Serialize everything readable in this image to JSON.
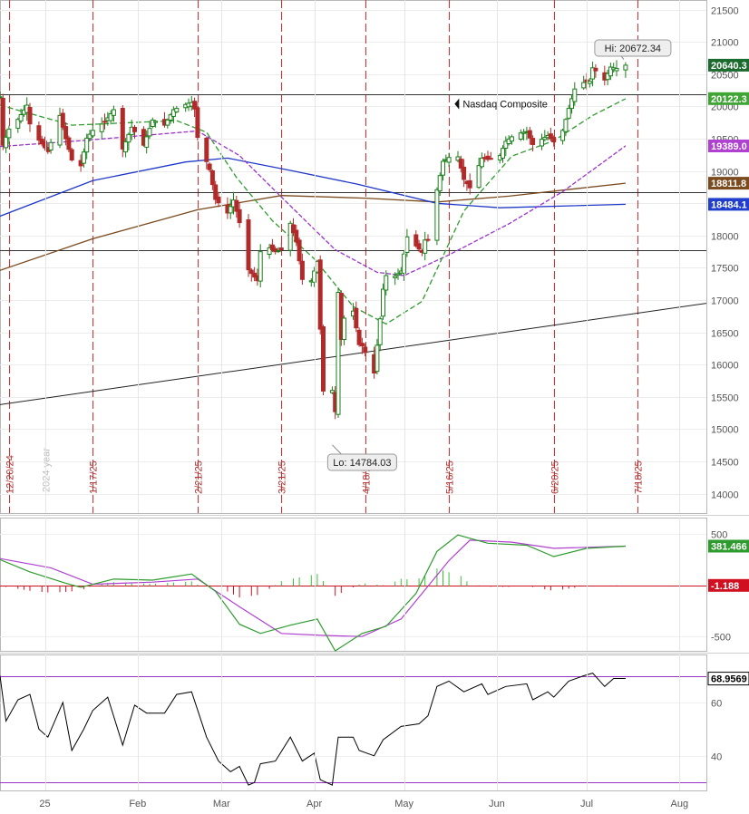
{
  "chart_data": [
    {
      "panel": "price",
      "type": "candlestick",
      "title": "Nasdaq Composite",
      "grid": true,
      "ylim": [
        13700,
        21650
      ],
      "y_ticks": [
        14000,
        14500,
        15000,
        15500,
        16000,
        16500,
        17000,
        17500,
        18000,
        18500,
        19000,
        19500,
        20000,
        20500,
        21000,
        21500
      ],
      "x_axis": {
        "start": "2024-12-17",
        "end": "2025-08-10",
        "month_labels": [
          {
            "date": "2025-01-01",
            "label": "25"
          },
          {
            "date": "2025-02-01",
            "label": "Feb"
          },
          {
            "date": "2025-03-01",
            "label": "Mar"
          },
          {
            "date": "2025-04-01",
            "label": "Apr"
          },
          {
            "date": "2025-05-01",
            "label": "May"
          },
          {
            "date": "2025-06-01",
            "label": "Jun"
          },
          {
            "date": "2025-07-01",
            "label": "Jul"
          },
          {
            "date": "2025-08-01",
            "label": "Aug"
          }
        ]
      },
      "expiration_lines": [
        {
          "date": "2024-12-20",
          "label": "12/20/24"
        },
        {
          "date": "2025-01-17",
          "label": "1/17/25"
        },
        {
          "date": "2025-02-21",
          "label": "2/21/25"
        },
        {
          "date": "2025-03-21",
          "label": "3/21/25"
        },
        {
          "date": "2025-04-18",
          "label": "4/18/25"
        },
        {
          "date": "2025-05-16",
          "label": "5/16/25"
        },
        {
          "date": "2025-06-20",
          "label": "6/20/25"
        },
        {
          "date": "2025-07-18",
          "label": "7/18/25"
        }
      ],
      "year_marker": {
        "date": "2025-01-01",
        "label": "2024 year"
      },
      "horizontal_levels": [
        20190,
        18670,
        17780
      ],
      "trendline": {
        "from": [
          "2024-12-17",
          15380
        ],
        "to": [
          "2025-08-10",
          16950
        ]
      },
      "annotations": {
        "high": {
          "label": "Hi: 20672.34",
          "date": "2025-07-14",
          "value": 20672.34
        },
        "low": {
          "label": "Lo: 14784.03",
          "date": "2025-04-07",
          "value": 14784.03
        },
        "name": {
          "label": "Nasdaq Composite",
          "date": "2025-05-20",
          "value": 20040
        }
      },
      "last_value_labels": [
        {
          "label": "20640.3",
          "value": 20640.3,
          "color": "#1a6b2d"
        },
        {
          "label": "20122.3",
          "value": 20122.3,
          "color": "#3fa535"
        },
        {
          "label": "19389.0",
          "value": 19389.0,
          "color": "#b040d0"
        },
        {
          "label": "18811.8",
          "value": 18811.8,
          "color": "#7b4a1e"
        },
        {
          "label": "18484.1",
          "value": 18484.1,
          "color": "#1f3fcc"
        }
      ],
      "series_colors": {
        "up": "#1a7f1a",
        "down": "#b02a2a",
        "ma_short": "#2e9b2e",
        "ma_mid": "#9a34c8",
        "ma_long": "#2038c8",
        "ma_200": "#7b4a1e",
        "expiration": "#c0393b"
      },
      "anchors": [
        [
          "2024-12-17",
          20150
        ],
        [
          "2024-12-18",
          19400
        ],
        [
          "2024-12-20",
          19650
        ],
        [
          "2024-12-23",
          19800
        ],
        [
          "2024-12-26",
          20020
        ],
        [
          "2024-12-27",
          19730
        ],
        [
          "2024-12-30",
          19480
        ],
        [
          "2025-01-02",
          19300
        ],
        [
          "2025-01-06",
          19860
        ],
        [
          "2025-01-08",
          19500
        ],
        [
          "2025-01-10",
          19170
        ],
        [
          "2025-01-13",
          19080
        ],
        [
          "2025-01-15",
          19510
        ],
        [
          "2025-01-17",
          19630
        ],
        [
          "2025-01-21",
          19760
        ],
        [
          "2025-01-24",
          19950
        ],
        [
          "2025-01-27",
          19340
        ],
        [
          "2025-01-30",
          19680
        ],
        [
          "2025-02-03",
          19400
        ],
        [
          "2025-02-06",
          19790
        ],
        [
          "2025-02-10",
          19710
        ],
        [
          "2025-02-13",
          19950
        ],
        [
          "2025-02-18",
          20050
        ],
        [
          "2025-02-19",
          20060
        ],
        [
          "2025-02-20",
          19960
        ],
        [
          "2025-02-21",
          19520
        ],
        [
          "2025-02-25",
          19020
        ],
        [
          "2025-02-27",
          18560
        ],
        [
          "2025-03-03",
          18350
        ],
        [
          "2025-03-05",
          18550
        ],
        [
          "2025-03-07",
          18200
        ],
        [
          "2025-03-10",
          17470
        ],
        [
          "2025-03-13",
          17300
        ],
        [
          "2025-03-14",
          17750
        ],
        [
          "2025-03-17",
          17810
        ],
        [
          "2025-03-19",
          17750
        ],
        [
          "2025-03-21",
          17780
        ],
        [
          "2025-03-24",
          18190
        ],
        [
          "2025-03-26",
          17900
        ],
        [
          "2025-03-28",
          17320
        ],
        [
          "2025-03-31",
          17300
        ],
        [
          "2025-04-01",
          17450
        ],
        [
          "2025-04-02",
          17600
        ],
        [
          "2025-04-03",
          16550
        ],
        [
          "2025-04-04",
          15590
        ],
        [
          "2025-04-07",
          15600
        ],
        [
          "2025-04-08",
          15270
        ],
        [
          "2025-04-09",
          17120
        ],
        [
          "2025-04-10",
          16390
        ],
        [
          "2025-04-11",
          16720
        ],
        [
          "2025-04-14",
          16830
        ],
        [
          "2025-04-16",
          16310
        ],
        [
          "2025-04-17",
          16290
        ],
        [
          "2025-04-21",
          15870
        ],
        [
          "2025-04-22",
          16300
        ],
        [
          "2025-04-23",
          16710
        ],
        [
          "2025-04-24",
          17170
        ],
        [
          "2025-04-25",
          17380
        ],
        [
          "2025-04-28",
          17370
        ],
        [
          "2025-04-30",
          17450
        ],
        [
          "2025-05-02",
          17980
        ],
        [
          "2025-05-05",
          17840
        ],
        [
          "2025-05-07",
          17740
        ],
        [
          "2025-05-08",
          17930
        ],
        [
          "2025-05-09",
          17930
        ],
        [
          "2025-05-12",
          18710
        ],
        [
          "2025-05-14",
          19150
        ],
        [
          "2025-05-16",
          19210
        ],
        [
          "2025-05-19",
          19220
        ],
        [
          "2025-05-21",
          18870
        ],
        [
          "2025-05-23",
          18740
        ],
        [
          "2025-05-27",
          19200
        ],
        [
          "2025-05-29",
          19180
        ],
        [
          "2025-06-02",
          19240
        ],
        [
          "2025-06-04",
          19460
        ],
        [
          "2025-06-06",
          19530
        ],
        [
          "2025-06-09",
          19590
        ],
        [
          "2025-06-11",
          19610
        ],
        [
          "2025-06-13",
          19410
        ],
        [
          "2025-06-17",
          19520
        ],
        [
          "2025-06-18",
          19550
        ],
        [
          "2025-06-20",
          19450
        ],
        [
          "2025-06-23",
          19630
        ],
        [
          "2025-06-25",
          19970
        ],
        [
          "2025-06-27",
          20270
        ],
        [
          "2025-06-30",
          20370
        ],
        [
          "2025-07-02",
          20390
        ],
        [
          "2025-07-03",
          20600
        ],
        [
          "2025-07-07",
          20410
        ],
        [
          "2025-07-09",
          20610
        ],
        [
          "2025-07-11",
          20590
        ],
        [
          "2025-07-14",
          20640
        ]
      ],
      "moving_averages": {
        "ma_short": [
          [
            "2024-12-17",
            20020
          ],
          [
            "2025-01-10",
            19710
          ],
          [
            "2025-02-14",
            19780
          ],
          [
            "2025-02-24",
            19600
          ],
          [
            "2025-03-06",
            18900
          ],
          [
            "2025-03-18",
            18230
          ],
          [
            "2025-04-01",
            17640
          ],
          [
            "2025-04-14",
            16900
          ],
          [
            "2025-04-25",
            16630
          ],
          [
            "2025-05-07",
            16980
          ],
          [
            "2025-05-21",
            18380
          ],
          [
            "2025-06-06",
            19230
          ],
          [
            "2025-06-20",
            19470
          ],
          [
            "2025-07-03",
            19860
          ],
          [
            "2025-07-14",
            20120
          ]
        ],
        "ma_mid": [
          [
            "2024-12-17",
            19380
          ],
          [
            "2025-01-13",
            19470
          ],
          [
            "2025-02-21",
            19620
          ],
          [
            "2025-03-07",
            19240
          ],
          [
            "2025-03-24",
            18460
          ],
          [
            "2025-04-08",
            17780
          ],
          [
            "2025-04-22",
            17430
          ],
          [
            "2025-05-01",
            17380
          ],
          [
            "2025-05-16",
            17700
          ],
          [
            "2025-06-05",
            18180
          ],
          [
            "2025-06-23",
            18680
          ],
          [
            "2025-07-14",
            19390
          ]
        ],
        "ma_long": [
          [
            "2024-12-17",
            18300
          ],
          [
            "2025-01-17",
            18850
          ],
          [
            "2025-02-17",
            19140
          ],
          [
            "2025-03-03",
            19200
          ],
          [
            "2025-03-24",
            19010
          ],
          [
            "2025-04-15",
            18800
          ],
          [
            "2025-05-12",
            18500
          ],
          [
            "2025-06-02",
            18430
          ],
          [
            "2025-07-14",
            18484
          ]
        ],
        "ma_200": [
          [
            "2024-12-17",
            17460
          ],
          [
            "2025-01-17",
            17950
          ],
          [
            "2025-02-21",
            18400
          ],
          [
            "2025-03-21",
            18620
          ],
          [
            "2025-04-18",
            18580
          ],
          [
            "2025-05-12",
            18520
          ],
          [
            "2025-06-05",
            18610
          ],
          [
            "2025-07-14",
            18812
          ]
        ]
      }
    },
    {
      "panel": "macd",
      "type": "line+histogram",
      "grid": true,
      "ylim": [
        -640,
        660
      ],
      "y_ticks": [
        500,
        -500
      ],
      "zero_line": 0,
      "last_value_labels": [
        {
          "label": "381.466",
          "value": 381.466,
          "color": "#2e9b2e"
        },
        {
          "label": "-1.188",
          "value": -1.188,
          "color": "#d01020"
        }
      ],
      "series_colors": {
        "macd": "#2e9b2e",
        "signal": "#b040d0",
        "hist_pos": "#35c235",
        "hist_neg": "#d01020"
      },
      "macd": [
        [
          "2024-12-17",
          250
        ],
        [
          "2024-12-27",
          130
        ],
        [
          "2025-01-08",
          20
        ],
        [
          "2025-01-13",
          -20
        ],
        [
          "2025-01-24",
          60
        ],
        [
          "2025-02-06",
          50
        ],
        [
          "2025-02-19",
          110
        ],
        [
          "2025-02-27",
          -60
        ],
        [
          "2025-03-07",
          -380
        ],
        [
          "2025-03-14",
          -470
        ],
        [
          "2025-03-24",
          -390
        ],
        [
          "2025-04-02",
          -330
        ],
        [
          "2025-04-08",
          -640
        ],
        [
          "2025-04-17",
          -470
        ],
        [
          "2025-04-25",
          -400
        ],
        [
          "2025-05-05",
          -80
        ],
        [
          "2025-05-12",
          330
        ],
        [
          "2025-05-19",
          490
        ],
        [
          "2025-05-29",
          410
        ],
        [
          "2025-06-11",
          390
        ],
        [
          "2025-06-20",
          280
        ],
        [
          "2025-07-01",
          360
        ],
        [
          "2025-07-14",
          381
        ]
      ],
      "signal": [
        [
          "2024-12-17",
          260
        ],
        [
          "2025-01-03",
          170
        ],
        [
          "2025-01-17",
          10
        ],
        [
          "2025-02-06",
          30
        ],
        [
          "2025-02-21",
          60
        ],
        [
          "2025-03-07",
          -210
        ],
        [
          "2025-03-21",
          -470
        ],
        [
          "2025-04-04",
          -490
        ],
        [
          "2025-04-17",
          -500
        ],
        [
          "2025-04-30",
          -330
        ],
        [
          "2025-05-16",
          240
        ],
        [
          "2025-05-23",
          440
        ],
        [
          "2025-06-06",
          420
        ],
        [
          "2025-06-20",
          360
        ],
        [
          "2025-07-14",
          381
        ]
      ]
    },
    {
      "panel": "rsi",
      "type": "line",
      "grid": true,
      "ylim": [
        27,
        78
      ],
      "y_ticks": [
        60,
        40
      ],
      "bands": [
        70,
        30
      ],
      "last_value_labels": [
        {
          "label": "68.9569",
          "value": 68.9569,
          "color": "#000000"
        }
      ],
      "series_colors": {
        "rsi": "#000000",
        "bands": "#9a34c8"
      },
      "rsi": [
        [
          "2024-12-17",
          70
        ],
        [
          "2024-12-19",
          53
        ],
        [
          "2024-12-23",
          61
        ],
        [
          "2024-12-27",
          63
        ],
        [
          "2024-12-30",
          50
        ],
        [
          "2025-01-02",
          47
        ],
        [
          "2025-01-07",
          60
        ],
        [
          "2025-01-10",
          42
        ],
        [
          "2025-01-14",
          50
        ],
        [
          "2025-01-17",
          57
        ],
        [
          "2025-01-22",
          62
        ],
        [
          "2025-01-27",
          44
        ],
        [
          "2025-01-31",
          59
        ],
        [
          "2025-02-04",
          56
        ],
        [
          "2025-02-10",
          56
        ],
        [
          "2025-02-14",
          63
        ],
        [
          "2025-02-19",
          64
        ],
        [
          "2025-02-24",
          47
        ],
        [
          "2025-02-28",
          38
        ],
        [
          "2025-03-04",
          34
        ],
        [
          "2025-03-07",
          36
        ],
        [
          "2025-03-10",
          29
        ],
        [
          "2025-03-12",
          30
        ],
        [
          "2025-03-14",
          37
        ],
        [
          "2025-03-19",
          38
        ],
        [
          "2025-03-24",
          47
        ],
        [
          "2025-03-28",
          38
        ],
        [
          "2025-04-01",
          41
        ],
        [
          "2025-04-03",
          31
        ],
        [
          "2025-04-07",
          29
        ],
        [
          "2025-04-09",
          47
        ],
        [
          "2025-04-14",
          47
        ],
        [
          "2025-04-16",
          42
        ],
        [
          "2025-04-21",
          40
        ],
        [
          "2025-04-24",
          46
        ],
        [
          "2025-04-30",
          51
        ],
        [
          "2025-05-06",
          52
        ],
        [
          "2025-05-09",
          55
        ],
        [
          "2025-05-12",
          66
        ],
        [
          "2025-05-16",
          68
        ],
        [
          "2025-05-21",
          64
        ],
        [
          "2025-05-27",
          67
        ],
        [
          "2025-05-29",
          63
        ],
        [
          "2025-06-04",
          66
        ],
        [
          "2025-06-11",
          67
        ],
        [
          "2025-06-13",
          61
        ],
        [
          "2025-06-18",
          64
        ],
        [
          "2025-06-20",
          62
        ],
        [
          "2025-06-25",
          68
        ],
        [
          "2025-06-30",
          70
        ],
        [
          "2025-07-03",
          71
        ],
        [
          "2025-07-07",
          66
        ],
        [
          "2025-07-10",
          69
        ],
        [
          "2025-07-14",
          69
        ]
      ]
    }
  ]
}
